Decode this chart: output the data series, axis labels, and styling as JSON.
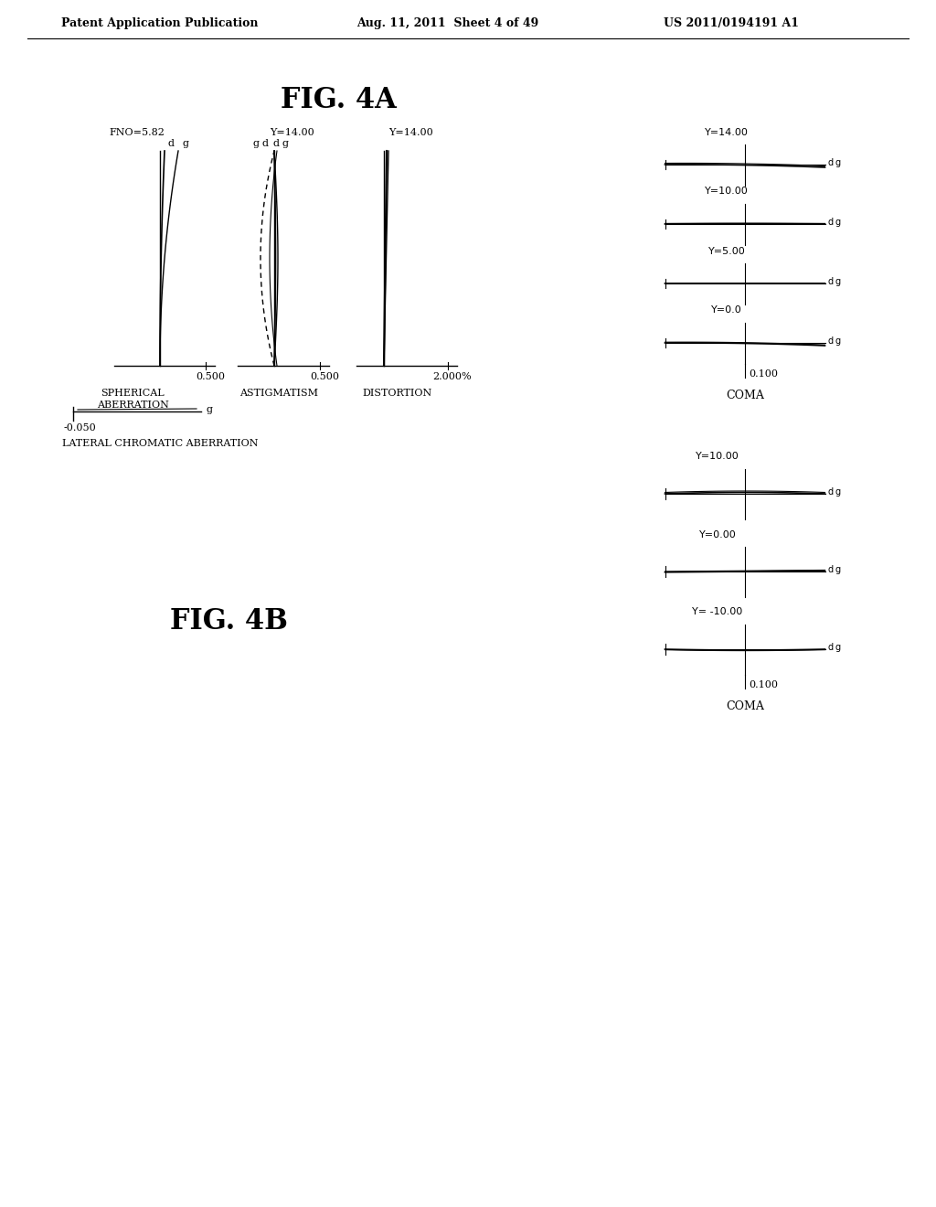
{
  "header_left": "Patent Application Publication",
  "header_mid": "Aug. 11, 2011  Sheet 4 of 49",
  "header_right": "US 2011/0194191 A1",
  "fig4a_title": "FIG. 4A",
  "fig4b_title": "FIG. 4B",
  "background": "#ffffff",
  "text_color": "#000000"
}
